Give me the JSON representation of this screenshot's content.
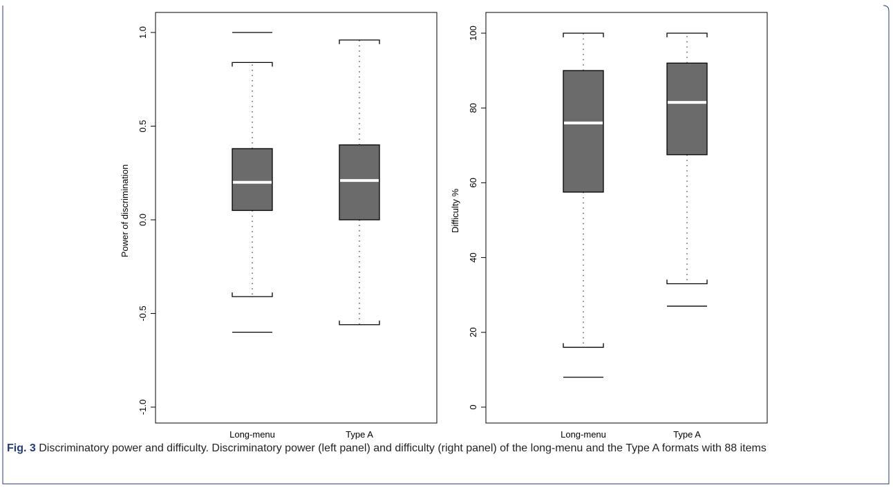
{
  "caption": {
    "label": "Fig. 3",
    "text": " Discriminatory power and difficulty. Discriminatory power (left panel) and difficulty (right panel) of the long-menu and the Type A formats with 88 items"
  },
  "colors": {
    "box_fill": "#6b6b6b",
    "median": "#ffffff",
    "frame_accent": "#1f3a75"
  },
  "chart_data": [
    {
      "type": "boxplot",
      "ylabel": "Power of discrimination",
      "ylim": [
        -1.0,
        1.0
      ],
      "yticks": [
        "-1.0",
        "-0.5",
        "0.0",
        "0.5",
        "1.0"
      ],
      "ytick_values": [
        -1.0,
        -0.5,
        0.0,
        0.5,
        1.0
      ],
      "categories": [
        "Long-menu",
        "Type A"
      ],
      "boxes": [
        {
          "q1": 0.05,
          "median": 0.2,
          "q3": 0.38,
          "whisker_low": -0.41,
          "whisker_high": 0.84,
          "outliers": [
            1.0,
            -0.6
          ]
        },
        {
          "q1": 0.0,
          "median": 0.21,
          "q3": 0.4,
          "whisker_low": -0.56,
          "whisker_high": 0.96,
          "outliers": []
        }
      ]
    },
    {
      "type": "boxplot",
      "ylabel": "Difficulty %",
      "ylim": [
        0,
        100
      ],
      "yticks": [
        "0",
        "20",
        "40",
        "60",
        "80",
        "100"
      ],
      "ytick_values": [
        0,
        20,
        40,
        60,
        80,
        100
      ],
      "categories": [
        "Long-menu",
        "Type A"
      ],
      "boxes": [
        {
          "q1": 57.5,
          "median": 76,
          "q3": 90,
          "whisker_low": 16,
          "whisker_high": 100,
          "outliers": [
            8
          ]
        },
        {
          "q1": 67.5,
          "median": 81.5,
          "q3": 92,
          "whisker_low": 33,
          "whisker_high": 100,
          "outliers": [
            27
          ]
        }
      ]
    }
  ]
}
